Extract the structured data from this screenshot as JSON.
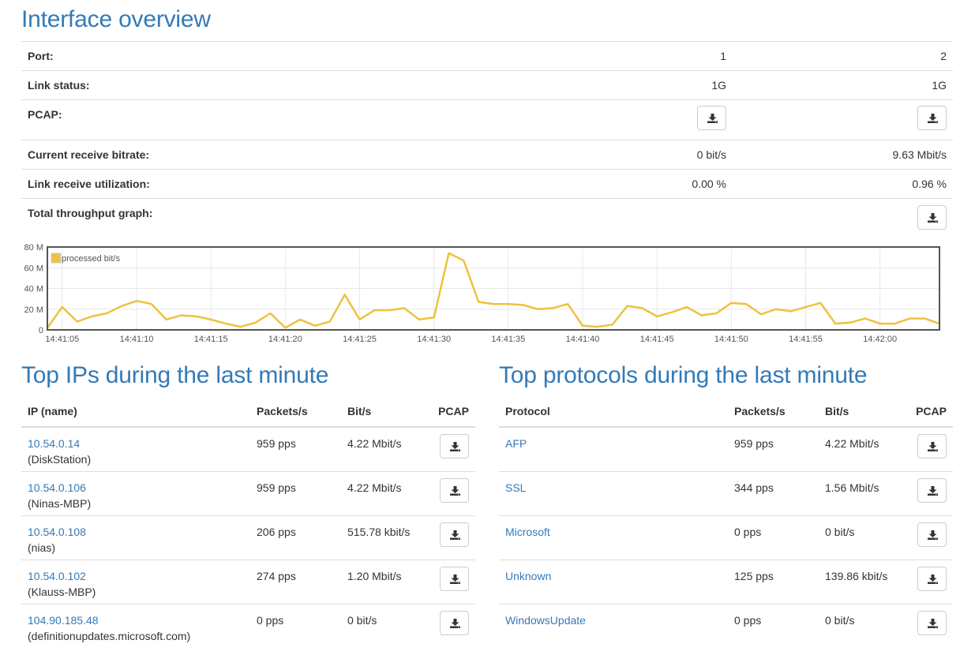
{
  "overview": {
    "title": "Interface overview",
    "rows": {
      "port": {
        "label": "Port:",
        "v1": "1",
        "v2": "2"
      },
      "link": {
        "label": "Link status:",
        "v1": "1G",
        "v2": "1G"
      },
      "pcap": {
        "label": "PCAP:"
      },
      "bitrate": {
        "label": "Current receive bitrate:",
        "v1": "0 bit/s",
        "v2": "9.63 Mbit/s"
      },
      "util": {
        "label": "Link receive utilization:",
        "v1": "0.00 %",
        "v2": "0.96 %"
      },
      "graph": {
        "label": "Total throughput graph:"
      }
    }
  },
  "chart_data": {
    "type": "line",
    "legend": "processed bit/s",
    "legend_position": "top-left",
    "series_color": "#edc240",
    "grid": true,
    "ylim": [
      0,
      80000000
    ],
    "y_ticks": [
      0,
      20000000,
      40000000,
      60000000,
      80000000
    ],
    "y_tick_labels": [
      "0",
      "20 M",
      "40 M",
      "60 M",
      "80 M"
    ],
    "x_tick_labels": [
      "14:41:05",
      "14:41:10",
      "14:41:15",
      "14:41:20",
      "14:41:25",
      "14:41:30",
      "14:41:35",
      "14:41:40",
      "14:41:45",
      "14:41:50",
      "14:41:55",
      "14:42:00"
    ],
    "x_start": "14:41:04",
    "x_step_seconds": 1,
    "values": [
      2,
      22,
      8,
      13,
      16,
      23,
      28,
      25,
      10,
      14,
      13,
      10,
      6,
      3,
      7,
      16,
      2,
      10,
      4,
      8,
      34,
      10,
      19,
      19,
      21,
      10,
      12,
      74,
      67,
      27,
      25,
      25,
      24,
      20,
      21,
      25,
      4,
      3,
      5,
      23,
      21,
      13,
      17,
      22,
      14,
      16,
      26,
      25,
      15,
      20,
      18,
      22,
      26,
      6,
      7,
      11,
      6,
      6,
      11,
      11,
      6
    ],
    "values_unit": "Mbit/s"
  },
  "top_ips": {
    "title": "Top IPs during the last minute",
    "headers": {
      "ip": "IP (name)",
      "pps": "Packets/s",
      "bits": "Bit/s",
      "pcap": "PCAP"
    },
    "rows": [
      {
        "ip": "10.54.0.14",
        "name": "(DiskStation)",
        "pps": "959 pps",
        "bits": "4.22 Mbit/s"
      },
      {
        "ip": "10.54.0.106",
        "name": "(Ninas-MBP)",
        "pps": "959 pps",
        "bits": "4.22 Mbit/s"
      },
      {
        "ip": "10.54.0.108",
        "name": "(nias)",
        "pps": "206 pps",
        "bits": "515.78 kbit/s"
      },
      {
        "ip": "10.54.0.102",
        "name": "(Klauss-MBP)",
        "pps": "274 pps",
        "bits": "1.20 Mbit/s"
      },
      {
        "ip": "104.90.185.48",
        "name": "(definitionupdates.microsoft.com)",
        "pps": "0 pps",
        "bits": "0 bit/s"
      }
    ]
  },
  "top_protocols": {
    "title": "Top protocols during the last minute",
    "headers": {
      "proto": "Protocol",
      "pps": "Packets/s",
      "bits": "Bit/s",
      "pcap": "PCAP"
    },
    "rows": [
      {
        "proto": "AFP",
        "pps": "959 pps",
        "bits": "4.22 Mbit/s"
      },
      {
        "proto": "SSL",
        "pps": "344 pps",
        "bits": "1.56 Mbit/s"
      },
      {
        "proto": "Microsoft",
        "pps": "0 pps",
        "bits": "0 bit/s"
      },
      {
        "proto": "Unknown",
        "pps": "125 pps",
        "bits": "139.86 kbit/s"
      },
      {
        "proto": "WindowsUpdate",
        "pps": "0 pps",
        "bits": "0 bit/s"
      }
    ]
  },
  "icons": {
    "download": "download-icon"
  }
}
